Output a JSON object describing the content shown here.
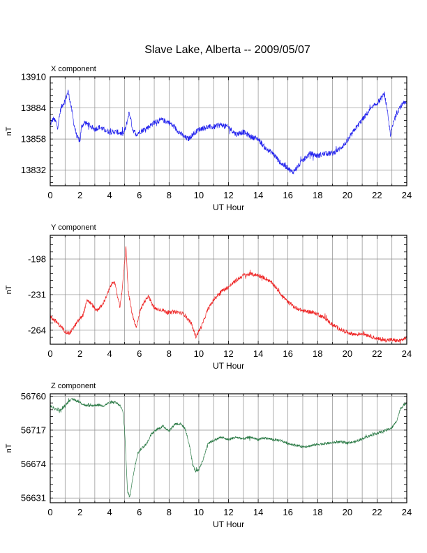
{
  "chart_data": {
    "type": "line",
    "title": "Slave Lake, Alberta -- 2009/05/07",
    "xlabel": "UT Hour",
    "ylabel": "nT",
    "xlim": [
      0,
      24
    ],
    "x_ticks": [
      "0",
      "2",
      "4",
      "6",
      "8",
      "10",
      "12",
      "14",
      "16",
      "18",
      "20",
      "22",
      "24"
    ],
    "grid": true,
    "panels": [
      {
        "label": "X component",
        "color": "#2222ee",
        "ylim": [
          13819,
          13910
        ],
        "y_ticks": [
          "13910",
          "13884",
          "13858",
          "13832"
        ],
        "y_tick_values": [
          13910,
          13884,
          13858,
          13832
        ],
        "x": [
          0,
          0.2,
          0.4,
          0.5,
          0.7,
          0.8,
          1.0,
          1.2,
          1.3,
          1.45,
          1.6,
          1.8,
          2.0,
          2.1,
          2.3,
          2.6,
          3.0,
          3.3,
          3.6,
          4.0,
          4.5,
          4.9,
          5.1,
          5.3,
          5.4,
          5.55,
          5.8,
          6.0,
          6.3,
          6.6,
          7.0,
          7.5,
          8.0,
          8.5,
          9.0,
          9.3,
          9.6,
          10.0,
          10.5,
          11.0,
          11.5,
          12.0,
          12.5,
          13.0,
          13.5,
          14.0,
          14.5,
          15.0,
          15.5,
          16.0,
          16.3,
          16.6,
          17.0,
          17.5,
          18.0,
          18.5,
          19.0,
          19.5,
          20.0,
          20.5,
          21.0,
          21.5,
          22.0,
          22.3,
          22.5,
          22.7,
          22.9,
          23.2,
          23.5,
          23.8,
          24.0
        ],
        "values": [
          13870,
          13875,
          13872,
          13868,
          13883,
          13886,
          13890,
          13898,
          13892,
          13882,
          13870,
          13860,
          13856,
          13868,
          13872,
          13870,
          13866,
          13868,
          13866,
          13864,
          13864,
          13862,
          13868,
          13880,
          13876,
          13866,
          13862,
          13864,
          13866,
          13868,
          13872,
          13874,
          13872,
          13866,
          13860,
          13858,
          13862,
          13866,
          13868,
          13868,
          13870,
          13868,
          13862,
          13864,
          13860,
          13858,
          13850,
          13846,
          13838,
          13834,
          13830,
          13834,
          13840,
          13846,
          13844,
          13846,
          13846,
          13850,
          13856,
          13866,
          13874,
          13882,
          13888,
          13892,
          13896,
          13880,
          13862,
          13876,
          13884,
          13888,
          13887
        ],
        "jitter": 2.2
      },
      {
        "label": "Y component",
        "color": "#ee2222",
        "ylim": [
          -277,
          -176
        ],
        "y_ticks": [
          "-198",
          "-231",
          "-264"
        ],
        "y_tick_values": [
          -198,
          -231,
          -264
        ],
        "x": [
          0,
          0.4,
          0.8,
          1.0,
          1.3,
          1.6,
          1.9,
          2.2,
          2.5,
          2.8,
          3.1,
          3.5,
          3.8,
          4.1,
          4.3,
          4.5,
          4.7,
          4.85,
          5.0,
          5.1,
          5.25,
          5.5,
          5.8,
          6.0,
          6.3,
          6.6,
          7.0,
          7.5,
          8.0,
          8.5,
          9.0,
          9.5,
          9.8,
          10.2,
          10.6,
          11.0,
          11.5,
          12.0,
          12.5,
          13.0,
          13.5,
          14.0,
          14.5,
          15.0,
          15.5,
          16.0,
          16.5,
          17.0,
          17.5,
          18.0,
          18.5,
          19.0,
          19.5,
          20.0,
          20.5,
          21.0,
          21.5,
          22.0,
          22.5,
          23.0,
          23.5,
          24.0
        ],
        "values": [
          -251,
          -256,
          -262,
          -265,
          -267,
          -261,
          -255,
          -250,
          -236,
          -240,
          -246,
          -241,
          -232,
          -222,
          -218,
          -231,
          -243,
          -225,
          -202,
          -186,
          -228,
          -248,
          -262,
          -248,
          -238,
          -232,
          -244,
          -245,
          -248,
          -247,
          -249,
          -258,
          -270,
          -260,
          -245,
          -236,
          -228,
          -224,
          -218,
          -213,
          -212,
          -213,
          -216,
          -221,
          -230,
          -238,
          -243,
          -246,
          -247,
          -249,
          -253,
          -259,
          -263,
          -266,
          -268,
          -267,
          -269,
          -272,
          -273,
          -273,
          -274,
          -271
        ],
        "jitter": 1.8
      },
      {
        "label": "Z component",
        "color": "#2a7a45",
        "ylim": [
          56625,
          56763
        ],
        "y_ticks": [
          "56760",
          "56717",
          "56674",
          "56631"
        ],
        "y_tick_values": [
          56760,
          56717,
          56674,
          56631
        ],
        "x": [
          0,
          0.3,
          0.7,
          1.0,
          1.3,
          1.6,
          2.0,
          2.4,
          2.8,
          3.2,
          3.6,
          4.0,
          4.4,
          4.7,
          4.9,
          5.0,
          5.1,
          5.2,
          5.35,
          5.5,
          5.7,
          5.9,
          6.2,
          6.5,
          6.8,
          7.2,
          7.6,
          8.0,
          8.4,
          8.8,
          9.1,
          9.4,
          9.6,
          9.8,
          10.0,
          10.3,
          10.6,
          11.0,
          11.5,
          12.0,
          12.5,
          13.0,
          13.5,
          14.0,
          14.5,
          15.0,
          15.5,
          16.0,
          16.5,
          17.0,
          17.5,
          18.0,
          18.5,
          19.0,
          19.5,
          20.0,
          20.5,
          21.0,
          21.5,
          22.0,
          22.5,
          23.0,
          23.3,
          23.6,
          24.0
        ],
        "values": [
          56748,
          56744,
          56742,
          56748,
          56755,
          56756,
          56752,
          56748,
          56748,
          56749,
          56748,
          56752,
          56752,
          56748,
          56740,
          56720,
          56680,
          56640,
          56632,
          56650,
          56672,
          56688,
          56695,
          56700,
          56712,
          56718,
          56722,
          56716,
          56725,
          56725,
          56718,
          56695,
          56672,
          56665,
          56667,
          56680,
          56700,
          56704,
          56708,
          56705,
          56708,
          56706,
          56708,
          56705,
          56707,
          56705,
          56704,
          56700,
          56698,
          56696,
          56697,
          56699,
          56700,
          56701,
          56702,
          56701,
          56702,
          56706,
          56710,
          56713,
          56716,
          56720,
          56728,
          56745,
          56752
        ],
        "jitter": 1.6
      }
    ]
  }
}
